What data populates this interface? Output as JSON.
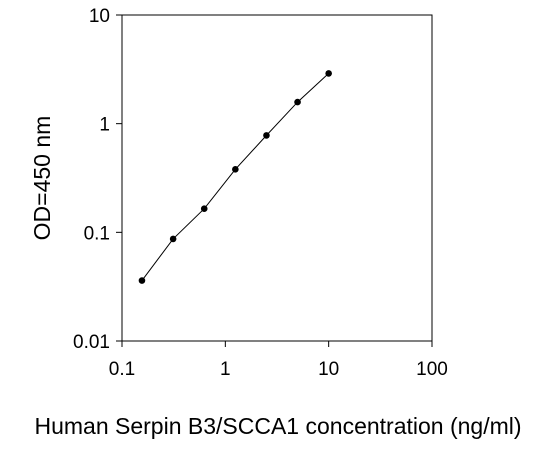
{
  "chart_data": {
    "type": "line",
    "title": "",
    "xlabel": "Human Serpin B3/SCCA1 concentration (ng/ml)",
    "ylabel": "OD=450 nm",
    "xscale": "log",
    "yscale": "log",
    "xlim": [
      0.1,
      100
    ],
    "ylim": [
      0.01,
      10
    ],
    "x_ticks": [
      0.1,
      1,
      10,
      100
    ],
    "x_tick_labels": [
      "0.1",
      "1",
      "10",
      "100"
    ],
    "y_ticks": [
      0.01,
      0.1,
      1,
      10
    ],
    "y_tick_labels": [
      "0.01",
      "0.1",
      "1",
      "10"
    ],
    "grid": false,
    "legend": "none",
    "series": [
      {
        "color": "#000000",
        "marker": "circle",
        "x": [
          0.156,
          0.3125,
          0.625,
          1.25,
          2.5,
          5,
          10
        ],
        "y": [
          0.036,
          0.087,
          0.165,
          0.38,
          0.78,
          1.58,
          2.9
        ]
      }
    ]
  }
}
